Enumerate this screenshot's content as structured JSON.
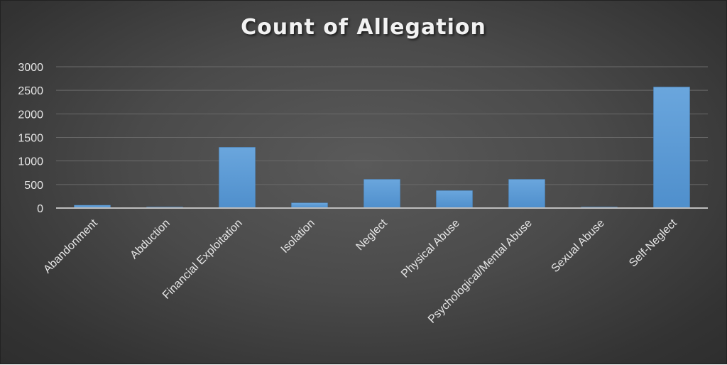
{
  "chart_data": {
    "type": "bar",
    "title": "Count of Allegation",
    "xlabel": "",
    "ylabel": "",
    "categories": [
      "Abandonment",
      "Abduction",
      "Financial Exploitation",
      "Isolation",
      "Neglect",
      "Physical Abuse",
      "Psychological/Mental Abuse",
      "Sexual Abuse",
      "Self-Neglect"
    ],
    "values": [
      60,
      5,
      1290,
      110,
      610,
      370,
      610,
      15,
      2570
    ],
    "ylim": [
      0,
      3000
    ],
    "yticks": [
      "0",
      "500",
      "1000",
      "1500",
      "2000",
      "2500",
      "3000"
    ],
    "grid": true,
    "legend": "none",
    "bar_color": "#5b9bd5",
    "background": "#474747"
  }
}
